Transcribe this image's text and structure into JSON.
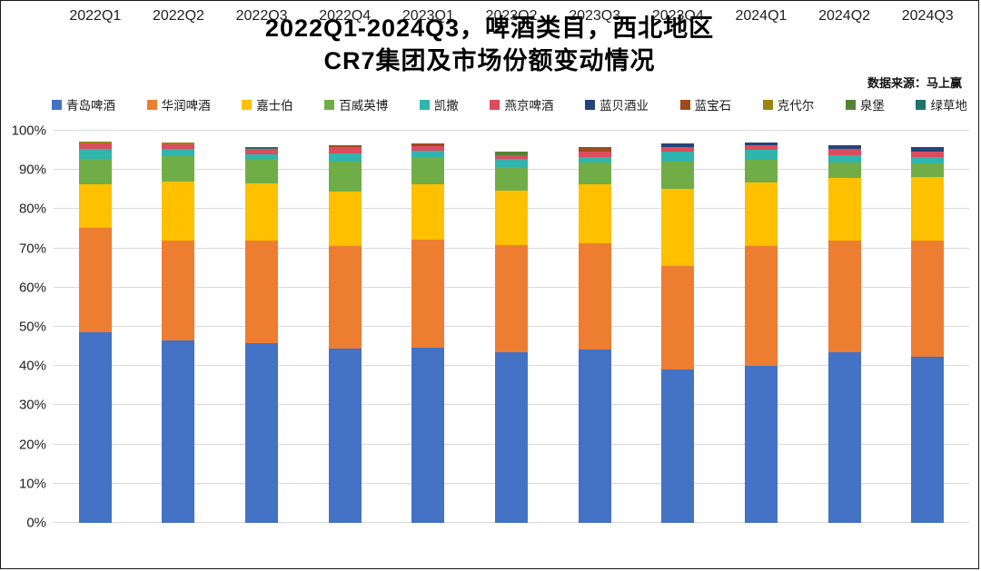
{
  "header": {
    "title_line1": "2022Q1-2024Q3，啤酒类目，西北地区",
    "title_line2": "CR7集团及市场份额变动情况",
    "source": "数据来源：马上赢"
  },
  "chart_data": {
    "type": "bar",
    "stacked": true,
    "title": "2022Q1-2024Q3，啤酒类目，西北地区 CR7集团及市场份额变动情况",
    "unit": "%",
    "ylim": [
      0,
      100
    ],
    "y_ticks": [
      "0%",
      "10%",
      "20%",
      "30%",
      "40%",
      "50%",
      "60%",
      "70%",
      "80%",
      "90%",
      "100%"
    ],
    "grid": true,
    "legend_position": "top",
    "categories": [
      "2022Q1",
      "2022Q2",
      "2022Q3",
      "2022Q4",
      "2023Q1",
      "2023Q2",
      "2023Q3",
      "2023Q4",
      "2024Q1",
      "2024Q2",
      "2024Q3"
    ],
    "series": [
      {
        "name": "青岛啤酒",
        "color": "#4472C4",
        "values": [
          48.6,
          46.5,
          45.8,
          44.5,
          44.7,
          43.5,
          44.3,
          39.1,
          40.1,
          43.5,
          42.4
        ]
      },
      {
        "name": "华润啤酒",
        "color": "#ED7D31",
        "values": [
          26.7,
          25.6,
          26.2,
          26.1,
          27.5,
          27.4,
          27.1,
          26.3,
          30.5,
          28.5,
          29.6
        ]
      },
      {
        "name": "嘉士伯",
        "color": "#FFC000",
        "values": [
          11.0,
          14.9,
          14.6,
          14.0,
          14.1,
          13.9,
          14.9,
          19.8,
          16.1,
          15.9,
          16.3
        ]
      },
      {
        "name": "百威英博",
        "color": "#70AD47",
        "values": [
          6.6,
          6.5,
          6.3,
          7.6,
          7.1,
          5.9,
          5.5,
          6.9,
          5.9,
          3.9,
          3.4
        ]
      },
      {
        "name": "凯撒",
        "color": "#2FB5AD",
        "values": [
          2.4,
          1.8,
          1.1,
          2.1,
          1.5,
          2.1,
          1.5,
          2.6,
          2.5,
          1.9,
          1.6
        ]
      },
      {
        "name": "燕京啤酒",
        "color": "#DC4C5F",
        "values": [
          1.5,
          1.2,
          1.3,
          1.5,
          1.1,
          1.0,
          1.4,
          1.2,
          1.1,
          1.6,
          1.5
        ]
      },
      {
        "name": "蓝贝酒业",
        "color": "#264478",
        "values": [
          0,
          0,
          0,
          0,
          0,
          0,
          0,
          0.9,
          0.8,
          1.1,
          1.0
        ]
      },
      {
        "name": "蓝宝石",
        "color": "#9E4A1C",
        "values": [
          0,
          0,
          0,
          0.6,
          0.8,
          0,
          1.1,
          0,
          0,
          0,
          0
        ]
      },
      {
        "name": "克代尔",
        "color": "#9C8210",
        "values": [
          0.4,
          0.4,
          0,
          0,
          0,
          0,
          0,
          0,
          0,
          0,
          0
        ]
      },
      {
        "name": "泉堡",
        "color": "#548235",
        "values": [
          0,
          0,
          0,
          0,
          0,
          0.9,
          0,
          0,
          0,
          0,
          0
        ]
      },
      {
        "name": "绿草地",
        "color": "#1F7368",
        "values": [
          0,
          0,
          0.6,
          0,
          0,
          0,
          0,
          0,
          0,
          0,
          0
        ]
      }
    ]
  }
}
